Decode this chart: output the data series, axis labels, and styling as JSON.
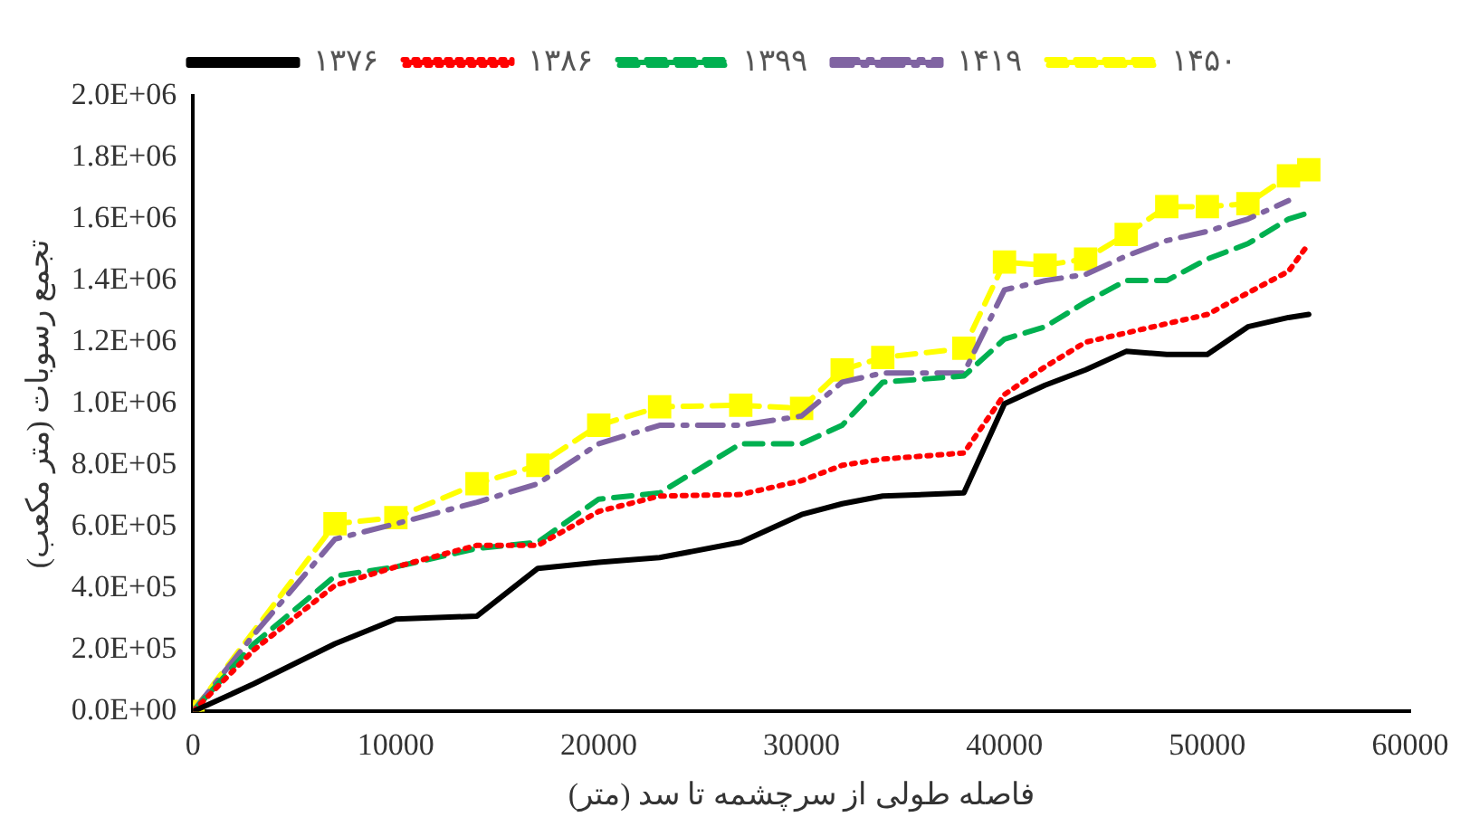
{
  "chart_data": {
    "type": "line",
    "xlabel": "فاصله طولی از سرچشمه تا سد (متر)",
    "ylabel": "تجمع رسوبات (متر مکعب)",
    "x": [
      0,
      3000,
      7000,
      10000,
      14000,
      17000,
      20000,
      23000,
      27000,
      30000,
      32000,
      34000,
      38000,
      40000,
      42000,
      44000,
      46000,
      48000,
      50000,
      52000,
      54000,
      55000
    ],
    "xlim": [
      0,
      60000
    ],
    "xticks": [
      0,
      10000,
      20000,
      30000,
      40000,
      50000,
      60000
    ],
    "ylim": [
      0,
      2000000
    ],
    "yticks": [
      {
        "value": 0,
        "label": "0.0E+00"
      },
      {
        "value": 200000,
        "label": "2.0E+05"
      },
      {
        "value": 400000,
        "label": "4.0E+05"
      },
      {
        "value": 600000,
        "label": "6.0E+05"
      },
      {
        "value": 800000,
        "label": "8.0E+05"
      },
      {
        "value": 1000000,
        "label": "1.0E+06"
      },
      {
        "value": 1200000,
        "label": "1.2E+06"
      },
      {
        "value": 1400000,
        "label": "1.4E+06"
      },
      {
        "value": 1600000,
        "label": "1.6E+06"
      },
      {
        "value": 1800000,
        "label": "1.8E+06"
      },
      {
        "value": 2000000,
        "label": "2.0E+06"
      }
    ],
    "grid": false,
    "legend": "top",
    "marker": "none",
    "series": [
      {
        "name": "۱۳۷۶",
        "color": "#000000",
        "line_style": "solid",
        "values": [
          0,
          90000,
          220000,
          300000,
          310000,
          465000,
          485000,
          500000,
          550000,
          640000,
          675000,
          700000,
          710000,
          1000000,
          1060000,
          1110000,
          1170000,
          1160000,
          1160000,
          1250000,
          1280000,
          1290000
        ]
      },
      {
        "name": "۱۳۸۶",
        "color": "#ff0000",
        "line_style": "dotted",
        "values": [
          0,
          200000,
          410000,
          470000,
          540000,
          540000,
          650000,
          700000,
          705000,
          750000,
          800000,
          820000,
          840000,
          1030000,
          1120000,
          1200000,
          1230000,
          1260000,
          1290000,
          1360000,
          1430000,
          1520000
        ]
      },
      {
        "name": "۱۳۹۹",
        "color": "#00b050",
        "line_style": "dashed",
        "values": [
          0,
          220000,
          440000,
          470000,
          530000,
          550000,
          690000,
          710000,
          870000,
          870000,
          930000,
          1070000,
          1090000,
          1210000,
          1250000,
          1330000,
          1400000,
          1400000,
          1470000,
          1520000,
          1600000,
          1620000
        ]
      },
      {
        "name": "۱۴۱۹",
        "color": "#8064a2",
        "line_style": "dashdot",
        "values": [
          0,
          250000,
          560000,
          610000,
          680000,
          740000,
          870000,
          930000,
          930000,
          960000,
          1070000,
          1100000,
          1100000,
          1370000,
          1400000,
          1420000,
          1480000,
          1530000,
          1560000,
          1600000,
          1660000,
          null
        ]
      },
      {
        "name": "۱۴۵۰",
        "color": "#ffff00",
        "line_style": "dashed",
        "marker": "square",
        "x": [
          0,
          7000,
          10000,
          14000,
          17000,
          20000,
          23000,
          27000,
          30000,
          32000,
          34000,
          38000,
          40000,
          42000,
          44000,
          46000,
          48000,
          50000,
          52000,
          54000,
          55000
        ],
        "values": [
          0,
          610000,
          630000,
          740000,
          800000,
          930000,
          990000,
          995000,
          985000,
          1110000,
          1150000,
          1180000,
          1460000,
          1450000,
          1470000,
          1550000,
          1640000,
          1640000,
          1650000,
          1740000,
          1760000
        ]
      }
    ]
  }
}
